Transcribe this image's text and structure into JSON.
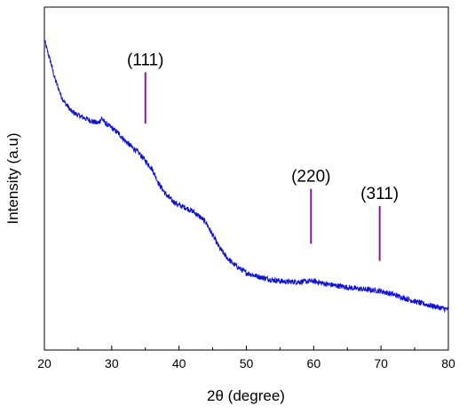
{
  "chart_data": {
    "type": "line",
    "title": "",
    "xlabel": "2θ (degree)",
    "ylabel": "Intensity (a.u)",
    "xlim": [
      20,
      80
    ],
    "ylim": [
      0,
      100
    ],
    "x_ticks": [
      20,
      30,
      40,
      50,
      60,
      70,
      80
    ],
    "x_tick_labels": [
      "20",
      "30",
      "40",
      "50",
      "60",
      "70",
      "80"
    ],
    "grid": false,
    "legend": "none",
    "line_color": "#1010d0",
    "marker_color": "#8b1a8b",
    "series": [
      {
        "x": [
          20,
          20.5,
          21,
          21.5,
          22,
          22.5,
          23,
          23.5,
          24,
          25,
          26,
          27,
          28,
          28.5,
          29,
          30,
          31,
          32,
          33,
          34,
          35,
          36,
          37,
          38,
          39,
          40,
          41,
          42,
          43,
          44,
          45,
          46,
          47,
          48,
          49,
          50,
          52,
          54,
          56,
          58,
          60,
          62,
          64,
          66,
          68,
          70,
          72,
          74,
          76,
          78,
          80
        ],
        "y": [
          90.5,
          86.8,
          83.5,
          79.5,
          76.8,
          74.0,
          72.2,
          71.0,
          69.6,
          68.5,
          67.6,
          66.8,
          66.1,
          67.6,
          66.2,
          64.8,
          63.2,
          61.0,
          59.2,
          57.5,
          55.2,
          52.8,
          48.5,
          45.5,
          43.5,
          42.2,
          41.5,
          40.5,
          39.0,
          37.2,
          33.5,
          29.8,
          27.2,
          25.2,
          23.8,
          22.5,
          21.3,
          20.4,
          19.9,
          19.9,
          20.1,
          19.2,
          18.6,
          18.0,
          17.6,
          17.2,
          16.1,
          14.8,
          13.6,
          12.7,
          11.8
        ]
      }
    ],
    "annotations": [
      {
        "label": "(111)",
        "x": 35,
        "y_from": 66,
        "y_to": 81
      },
      {
        "label": "(220)",
        "x": 59.6,
        "y_from": 31,
        "y_to": 47
      },
      {
        "label": "(311)",
        "x": 69.8,
        "y_from": 26,
        "y_to": 42
      }
    ]
  }
}
